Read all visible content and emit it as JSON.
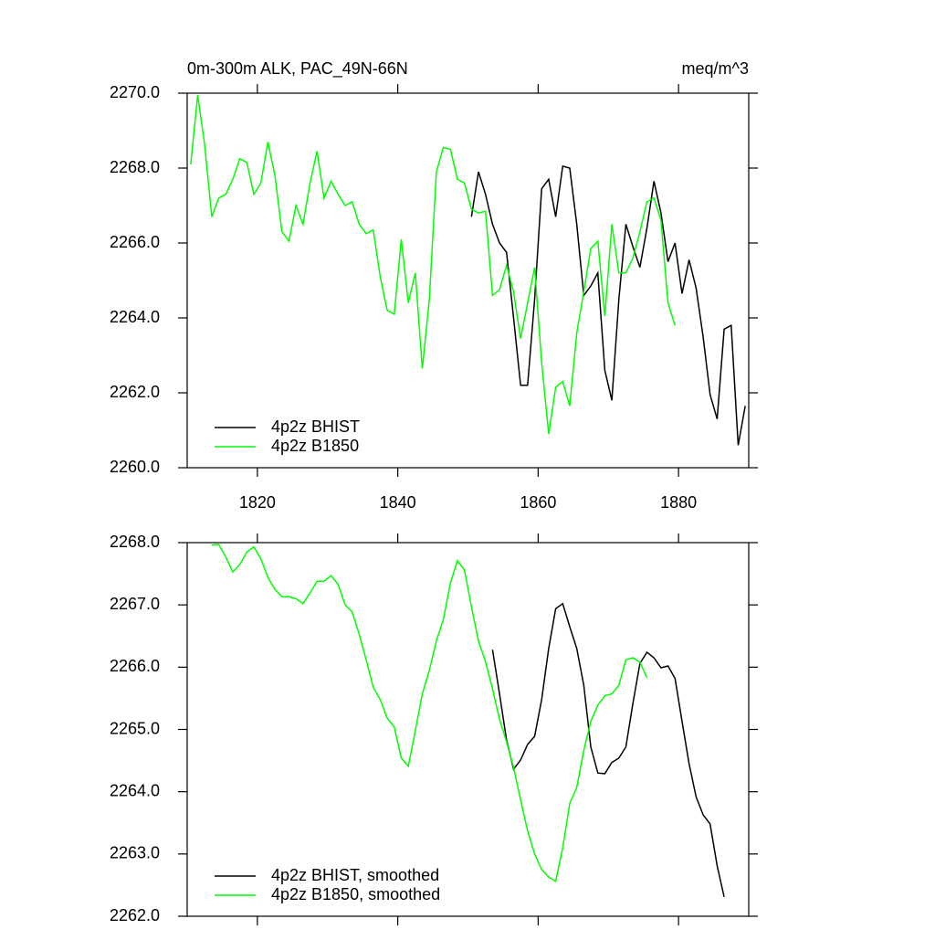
{
  "chart_data": [
    {
      "type": "line",
      "title": "0m-300m ALK, PAC_49N-66N",
      "subtitle": "meq/m^3",
      "xlim": [
        1810,
        1890
      ],
      "xticks": [
        1820,
        1840,
        1860,
        1880
      ],
      "ylim": [
        2260,
        2270
      ],
      "yticks": [
        {
          "value": 2260,
          "label": "2260.0"
        },
        {
          "value": 2262,
          "label": "2262.0"
        },
        {
          "value": 2264,
          "label": "2264.0"
        },
        {
          "value": 2266,
          "label": "2266.0"
        },
        {
          "value": 2268,
          "label": "2268.0"
        },
        {
          "value": 2270,
          "label": "2270.0"
        }
      ],
      "legend": "lower-left",
      "series": [
        {
          "name": "4p2z BHIST",
          "color": "#000000",
          "x": [
            1850.5,
            1851.5,
            1852.5,
            1853.5,
            1854.5,
            1855.5,
            1856.5,
            1857.5,
            1858.5,
            1859.5,
            1860.5,
            1861.5,
            1862.5,
            1863.5,
            1864.5,
            1865.5,
            1866.5,
            1867.5,
            1868.5,
            1869.5,
            1870.5,
            1871.5,
            1872.5,
            1873.5,
            1874.5,
            1875.5,
            1876.5,
            1877.5,
            1878.5,
            1879.5,
            1880.5,
            1881.5,
            1882.5,
            1883.5,
            1884.5,
            1885.5,
            1886.5,
            1887.5,
            1888.5,
            1889.5
          ],
          "values": [
            2266.7,
            2267.9,
            2267.3,
            2266.5,
            2266.0,
            2265.75,
            2264.0,
            2262.2,
            2262.2,
            2264.5,
            2267.45,
            2267.7,
            2266.7,
            2268.05,
            2268.0,
            2266.5,
            2264.6,
            2264.85,
            2265.2,
            2262.6,
            2261.8,
            2264.5,
            2266.5,
            2265.9,
            2265.35,
            2266.4,
            2267.65,
            2266.8,
            2265.5,
            2266.0,
            2264.65,
            2265.55,
            2264.8,
            2263.5,
            2261.95,
            2261.3,
            2263.7,
            2263.8,
            2260.6,
            2261.65
          ]
        },
        {
          "name": "4p2z B1850",
          "color": "#00ff00",
          "x": [
            1810.5,
            1811.5,
            1812.5,
            1813.5,
            1814.5,
            1815.5,
            1816.5,
            1817.5,
            1818.5,
            1819.5,
            1820.5,
            1821.5,
            1822.5,
            1823.5,
            1824.5,
            1825.5,
            1826.5,
            1827.5,
            1828.5,
            1829.5,
            1830.5,
            1831.5,
            1832.5,
            1833.5,
            1834.5,
            1835.5,
            1836.5,
            1837.5,
            1838.5,
            1839.5,
            1840.5,
            1841.5,
            1842.5,
            1843.5,
            1844.5,
            1845.5,
            1846.5,
            1847.5,
            1848.5,
            1849.5,
            1850.5,
            1851.5,
            1852.5,
            1853.5,
            1854.5,
            1855.5,
            1856.5,
            1857.5,
            1858.5,
            1859.5,
            1860.5,
            1861.5,
            1862.5,
            1863.5,
            1864.5,
            1865.5,
            1866.5,
            1867.5,
            1868.5,
            1869.5,
            1870.5,
            1871.5,
            1872.5,
            1873.5,
            1874.5,
            1875.5,
            1876.5,
            1877.5,
            1878.5,
            1879.5
          ],
          "values": [
            2268.1,
            2269.95,
            2268.6,
            2266.7,
            2267.2,
            2267.3,
            2267.7,
            2268.25,
            2268.15,
            2267.3,
            2267.6,
            2268.7,
            2267.8,
            2266.3,
            2266.05,
            2267.0,
            2266.5,
            2267.6,
            2268.45,
            2267.2,
            2267.65,
            2267.3,
            2267.0,
            2267.1,
            2266.5,
            2266.25,
            2266.35,
            2265.1,
            2264.2,
            2264.1,
            2266.1,
            2264.4,
            2265.2,
            2262.65,
            2264.5,
            2267.9,
            2268.55,
            2268.5,
            2267.7,
            2267.6,
            2266.9,
            2266.8,
            2266.85,
            2264.6,
            2264.75,
            2265.4,
            2264.7,
            2263.45,
            2264.4,
            2265.35,
            2262.8,
            2260.9,
            2262.15,
            2262.3,
            2261.65,
            2263.6,
            2264.7,
            2265.85,
            2266.05,
            2264.05,
            2266.5,
            2265.2,
            2265.2,
            2265.6,
            2266.3,
            2267.1,
            2267.2,
            2266.6,
            2264.4,
            2263.8
          ]
        }
      ]
    },
    {
      "type": "line",
      "xlim": [
        1810,
        1890
      ],
      "xticks": [
        1820,
        1840,
        1860,
        1880
      ],
      "ylim": [
        2262,
        2268
      ],
      "yticks": [
        {
          "value": 2262,
          "label": "2262.0"
        },
        {
          "value": 2263,
          "label": "2263.0"
        },
        {
          "value": 2264,
          "label": "2264.0"
        },
        {
          "value": 2265,
          "label": "2265.0"
        },
        {
          "value": 2266,
          "label": "2266.0"
        },
        {
          "value": 2267,
          "label": "2267.0"
        },
        {
          "value": 2268,
          "label": "2268.0"
        }
      ],
      "legend": "lower-left",
      "series": [
        {
          "name": "4p2z BHIST, smoothed",
          "color": "#000000",
          "x": [
            1853.5,
            1854.5,
            1855.5,
            1856.5,
            1857.5,
            1858.5,
            1859.5,
            1860.5,
            1861.5,
            1862.5,
            1863.5,
            1864.5,
            1865.5,
            1866.5,
            1867.5,
            1868.5,
            1869.5,
            1870.5,
            1871.5,
            1872.5,
            1873.5,
            1874.5,
            1875.5,
            1876.5,
            1877.5,
            1878.5,
            1879.5,
            1880.5,
            1881.5,
            1882.5,
            1883.5,
            1884.5,
            1885.5,
            1886.5
          ],
          "values": [
            2266.28,
            2265.57,
            2264.83,
            2264.36,
            2264.51,
            2264.76,
            2264.89,
            2265.48,
            2266.3,
            2266.94,
            2267.02,
            2266.65,
            2266.3,
            2265.71,
            2264.72,
            2264.3,
            2264.29,
            2264.47,
            2264.54,
            2264.72,
            2265.42,
            2266.06,
            2266.24,
            2266.15,
            2265.99,
            2266.02,
            2265.82,
            2265.13,
            2264.45,
            2263.92,
            2263.63,
            2263.48,
            2262.81,
            2262.31
          ]
        },
        {
          "name": "4p2z B1850, smoothed",
          "color": "#00ff00",
          "x": [
            1813.5,
            1814.5,
            1815.5,
            1816.5,
            1817.5,
            1818.5,
            1819.5,
            1820.5,
            1821.5,
            1822.5,
            1823.5,
            1824.5,
            1825.5,
            1826.5,
            1827.5,
            1828.5,
            1829.5,
            1830.5,
            1831.5,
            1832.5,
            1833.5,
            1834.5,
            1835.5,
            1836.5,
            1837.5,
            1838.5,
            1839.5,
            1840.5,
            1841.5,
            1842.5,
            1843.5,
            1844.5,
            1845.5,
            1846.5,
            1847.5,
            1848.5,
            1849.5,
            1850.5,
            1851.5,
            1852.5,
            1853.5,
            1854.5,
            1855.5,
            1856.5,
            1857.5,
            1858.5,
            1859.5,
            1860.5,
            1861.5,
            1862.5,
            1863.5,
            1864.5,
            1865.5,
            1866.5,
            1867.5,
            1868.5,
            1869.5,
            1870.5,
            1871.5,
            1872.5,
            1873.5,
            1874.5,
            1875.5
          ],
          "values": [
            2267.96,
            2267.97,
            2267.77,
            2267.53,
            2267.65,
            2267.85,
            2267.93,
            2267.74,
            2267.44,
            2267.25,
            2267.13,
            2267.13,
            2267.1,
            2267.02,
            2267.19,
            2267.38,
            2267.38,
            2267.47,
            2267.33,
            2267.0,
            2266.89,
            2266.53,
            2266.12,
            2265.68,
            2265.48,
            2265.18,
            2265.04,
            2264.54,
            2264.41,
            2264.98,
            2265.57,
            2265.95,
            2266.42,
            2266.77,
            2267.35,
            2267.71,
            2267.56,
            2266.97,
            2266.42,
            2266.09,
            2265.65,
            2265.16,
            2264.8,
            2264.39,
            2263.87,
            2263.37,
            2263.0,
            2262.75,
            2262.63,
            2262.56,
            2263.1,
            2263.81,
            2264.07,
            2264.66,
            2265.13,
            2265.39,
            2265.54,
            2265.57,
            2265.71,
            2266.12,
            2266.15,
            2266.08,
            2265.83
          ]
        }
      ]
    }
  ]
}
